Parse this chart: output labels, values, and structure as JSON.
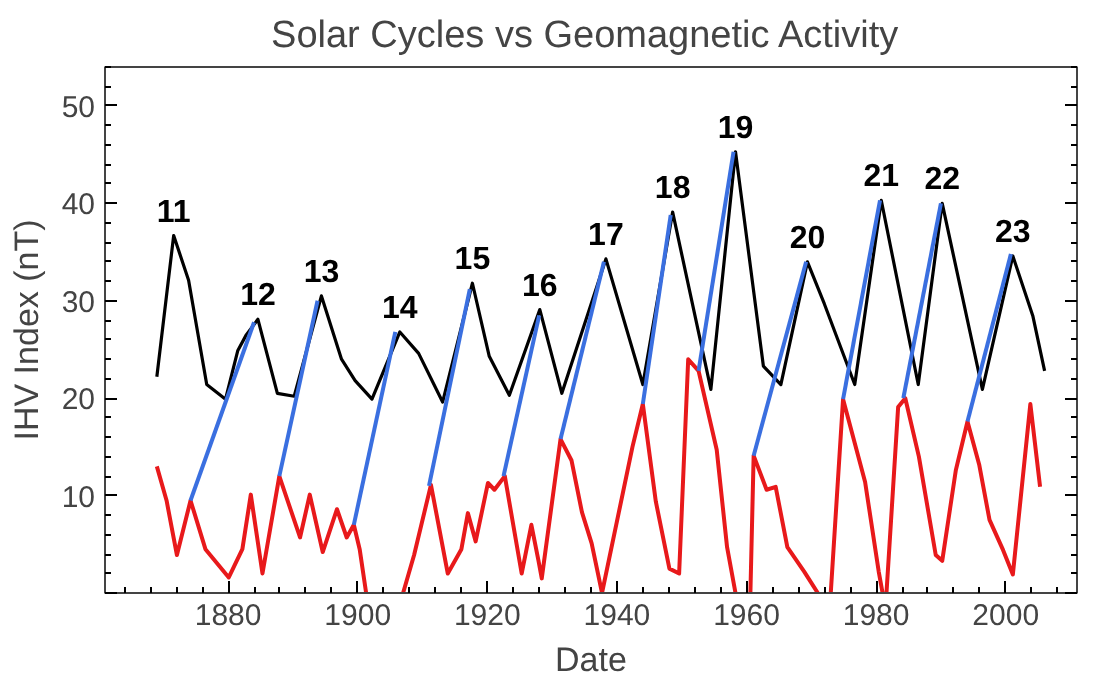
{
  "chart_data": {
    "type": "line",
    "title": "Solar Cycles  vs Geomagnetic Activity",
    "xlabel": "Date",
    "ylabel": "IHV Index (nT)",
    "xlim": [
      1861,
      2011
    ],
    "ylim": [
      0,
      54
    ],
    "xticks": [
      1880,
      1900,
      1920,
      1940,
      1960,
      1980,
      2000
    ],
    "yticks": [
      {
        "value": 0,
        "label": null
      },
      10,
      20,
      30,
      40,
      50
    ],
    "grid": false,
    "marker": "none",
    "line_style": "solid",
    "series": [
      {
        "color": "#000000",
        "x": [
          1869.0,
          1871.6,
          1873.9,
          1876.7,
          1879.6,
          1881.5,
          1882.8,
          1884.6,
          1887.6,
          1890.2,
          1894.4,
          1897.5,
          1899.6,
          1902.2,
          1906.5,
          1909.4,
          1913.1,
          1917.7,
          1920.3,
          1923.4,
          1928.1,
          1931.5,
          1938.3,
          1944.0,
          1948.6,
          1954.5,
          1958.3,
          1962.6,
          1965.3,
          1969.4,
          1972.0,
          1976.7,
          1980.8,
          1986.5,
          1990.2,
          1996.4,
          2001.1,
          2004.2,
          2006.0
        ],
        "values": [
          22.2,
          36.7,
          32.1,
          21.4,
          19.9,
          24.9,
          26.5,
          28.1,
          20.5,
          20.2,
          30.5,
          24.0,
          21.8,
          19.9,
          26.8,
          24.6,
          19.6,
          31.8,
          24.3,
          20.3,
          29.1,
          20.5,
          34.3,
          21.4,
          39.1,
          20.9,
          45.3,
          23.3,
          21.4,
          34.0,
          29.7,
          21.4,
          40.3,
          21.4,
          40.0,
          20.9,
          34.6,
          28.4,
          22.8
        ]
      },
      {
        "color": "#e8191b",
        "x": [
          1869.0,
          1870.5,
          1872.1,
          1874.2,
          1876.5,
          1880.1,
          1882.2,
          1883.5,
          1885.3,
          1887.9,
          1891.1,
          1892.6,
          1894.6,
          1896.8,
          1898.3,
          1899.4,
          1900.3,
          1901.3,
          1904.0,
          1907.0,
          1908.7,
          1911.3,
          1913.9,
          1916.0,
          1917.0,
          1918.2,
          1920.1,
          1921.1,
          1922.7,
          1925.3,
          1926.8,
          1927.9,
          1928.4,
          1931.3,
          1933.0,
          1934.6,
          1936.1,
          1937.7,
          1940.3,
          1942.4,
          1944.0,
          1946.0,
          1948.1,
          1949.6,
          1951.0,
          1952.6,
          1955.4,
          1957.0,
          1958.3,
          1959.5,
          1960.6,
          1961.1,
          1963.1,
          1964.5,
          1966.3,
          1968.9,
          1971.0,
          1972.0,
          1973.0,
          1974.9,
          1978.3,
          1980.4,
          1981.0,
          1981.3,
          1981.6,
          1983.4,
          1984.5,
          1986.6,
          1989.2,
          1990.2,
          1992.3,
          1994.1,
          1995.9,
          1997.5,
          1999.6,
          2001.1,
          2003.8,
          2005.3
        ],
        "values": [
          13.0,
          9.5,
          3.9,
          9.5,
          4.5,
          1.6,
          4.5,
          10.1,
          2.0,
          12.0,
          5.7,
          10.1,
          4.2,
          8.6,
          5.7,
          7.0,
          4.5,
          0,
          null,
          0,
          3.9,
          11.1,
          2.0,
          4.5,
          8.2,
          5.3,
          11.3,
          10.6,
          12.0,
          2.0,
          7.0,
          3.3,
          1.5,
          15.8,
          13.6,
          8.3,
          5.1,
          0,
          8.3,
          15.0,
          19.4,
          9.4,
          2.5,
          2.0,
          24.0,
          22.8,
          14.7,
          4.7,
          0,
          null,
          0,
          14.1,
          10.6,
          10.9,
          4.7,
          2.2,
          0,
          null,
          0,
          19.9,
          11.4,
          2.2,
          0,
          null,
          0,
          19.1,
          20.0,
          14.0,
          3.9,
          3.3,
          12.6,
          17.6,
          13.2,
          7.5,
          4.4,
          1.9,
          19.4,
          10.9
        ]
      },
      {
        "color": "#3a6fe0",
        "x": [
          1874.2,
          1884.0
        ],
        "values": [
          9.5,
          27.8
        ]
      },
      {
        "color": "#3a6fe0",
        "x": [
          1887.9,
          1893.8
        ],
        "values": [
          12.0,
          30.0
        ]
      },
      {
        "color": "#3a6fe0",
        "x": [
          1899.4,
          1905.8
        ],
        "values": [
          7.0,
          26.8
        ]
      },
      {
        "color": "#3a6fe0",
        "x": [
          1911.0,
          1917.3
        ],
        "values": [
          11.0,
          31.2
        ]
      },
      {
        "color": "#3a6fe0",
        "x": [
          1922.5,
          1928.0
        ],
        "values": [
          12.0,
          28.5
        ]
      },
      {
        "color": "#3a6fe0",
        "x": [
          1931.3,
          1938.0
        ],
        "values": [
          15.8,
          34.0
        ]
      },
      {
        "color": "#3a6fe0",
        "x": [
          1944.0,
          1948.3
        ],
        "values": [
          19.4,
          38.8
        ]
      },
      {
        "color": "#3a6fe0",
        "x": [
          1952.6,
          1958.0
        ],
        "values": [
          22.8,
          45.3
        ]
      },
      {
        "color": "#3a6fe0",
        "x": [
          1961.1,
          1969.2
        ],
        "values": [
          14.1,
          34.0
        ]
      },
      {
        "color": "#3a6fe0",
        "x": [
          1974.9,
          1980.6
        ],
        "values": [
          19.9,
          40.3
        ]
      },
      {
        "color": "#3a6fe0",
        "x": [
          1984.2,
          1990.0
        ],
        "values": [
          20.0,
          40.0
        ]
      },
      {
        "color": "#3a6fe0",
        "x": [
          1994.1,
          2000.8
        ],
        "values": [
          17.6,
          34.8
        ]
      }
    ],
    "annotations": [
      "11",
      "12",
      "13",
      "14",
      "15",
      "16",
      "17",
      "18",
      "19",
      "20",
      "21",
      "22",
      "23"
    ]
  }
}
